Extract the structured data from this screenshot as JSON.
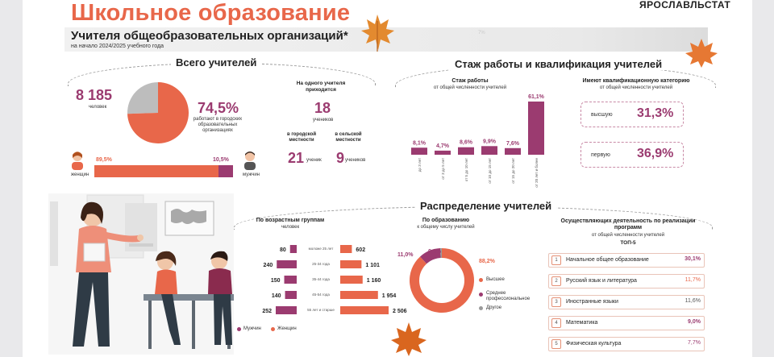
{
  "header": {
    "title": "Школьное образование",
    "brand": "ЯРОСЛАВЛЬСТАТ",
    "subtitle": "Учителя общеобразовательных организаций*",
    "subnote": "на начало 2024/2025 учебного года",
    "faint_text": "7%"
  },
  "total": {
    "heading": "Всего учителей",
    "count": "8 185",
    "count_unit": "человек",
    "urban_pct": "74,5%",
    "urban_note": "работают в городских образовательных организациях",
    "urban_fraction": 0.745,
    "female_pct": "89,5%",
    "male_pct": "10,5%",
    "female_label": "женщин",
    "male_label": "мужчин",
    "female_fraction": 0.895
  },
  "per_teacher": {
    "heading": "На одного учителя приходится",
    "total_value": "18",
    "total_unit": "учеников",
    "urban_label": "в городской местности",
    "rural_label": "в сельской местности",
    "urban_value": "21",
    "urban_unit": "ученик",
    "rural_value": "9",
    "rural_unit": "учеников"
  },
  "experience": {
    "heading": "Стаж работы и квалификация учителей",
    "chart_title": "Стаж работы",
    "chart_sub": "от общей численности учителей",
    "qual_title": "Имеют квалификационную категорию",
    "qual_sub": "от общей численности учителей",
    "qual_high_label": "высшую",
    "qual_high_value": "31,3%",
    "qual_first_label": "первую",
    "qual_first_value": "36,9%"
  },
  "distribution": {
    "heading": "Распределение учителей",
    "age_title": "По возрастным группам",
    "age_sub": "человек",
    "male_legend": "Мужчин",
    "female_legend": "Женщин",
    "edu_title": "По образованию",
    "edu_sub": "к общему числу учителей",
    "edu_high_label": "Высшее",
    "edu_mid_label": "Среднее профессиональное",
    "edu_other_label": "Другое",
    "edu_high_value": "88,2%",
    "edu_mid_value": "11,0%",
    "edu_other_value": "0,8%",
    "top_title": "Осуществляющих деятельность по реализации программ",
    "top_sub": "от общей численности учителей",
    "top_label": "ТОП-5",
    "top_items": [
      {
        "n": "1",
        "name": "Начальное общее образование",
        "value": "30,1%"
      },
      {
        "n": "2",
        "name": "Русский язык и литература",
        "value": "11,7%"
      },
      {
        "n": "3",
        "name": "Иностранные языки",
        "value": "11,6%"
      },
      {
        "n": "4",
        "name": "Математика",
        "value": "9,0%"
      },
      {
        "n": "5",
        "name": "Физическая культура",
        "value": "7,7%"
      }
    ]
  },
  "colors": {
    "accent": "#e8674a",
    "plum": "#9b3b70",
    "grey": "#bdbdbd"
  },
  "chart_data": [
    {
      "type": "bar",
      "title": "Стаж работы",
      "categories": [
        "до 3 лет",
        "от 3 до 5 лет",
        "от 5 до 10 лет",
        "от 10 до 15 лет",
        "от 15 до 20 лет",
        "от 20 лет и более"
      ],
      "values": [
        8.1,
        4.7,
        8.6,
        9.9,
        7.6,
        61.1
      ],
      "labels": [
        "8,1%",
        "4,7%",
        "8,6%",
        "9,9%",
        "7,6%",
        "61,1%"
      ]
    },
    {
      "type": "bar",
      "title": "По возрастным группам",
      "categories": [
        "моложе 25 лет",
        "25-34 года",
        "35-44 года",
        "45-54 года",
        "55 лет и старше"
      ],
      "series": [
        {
          "name": "Мужчин",
          "values": [
            80,
            240,
            150,
            140,
            252
          ]
        },
        {
          "name": "Женщин",
          "values": [
            602,
            1101,
            1160,
            1954,
            2506
          ]
        }
      ],
      "male_labels": [
        "80",
        "240",
        "150",
        "140",
        "252"
      ],
      "female_labels": [
        "602",
        "1 101",
        "1 160",
        "1 954",
        "2 506"
      ]
    },
    {
      "type": "pie",
      "title": "По образованию",
      "categories": [
        "Высшее",
        "Среднее профессиональное",
        "Другое"
      ],
      "values": [
        88.2,
        11.0,
        0.8
      ]
    }
  ]
}
